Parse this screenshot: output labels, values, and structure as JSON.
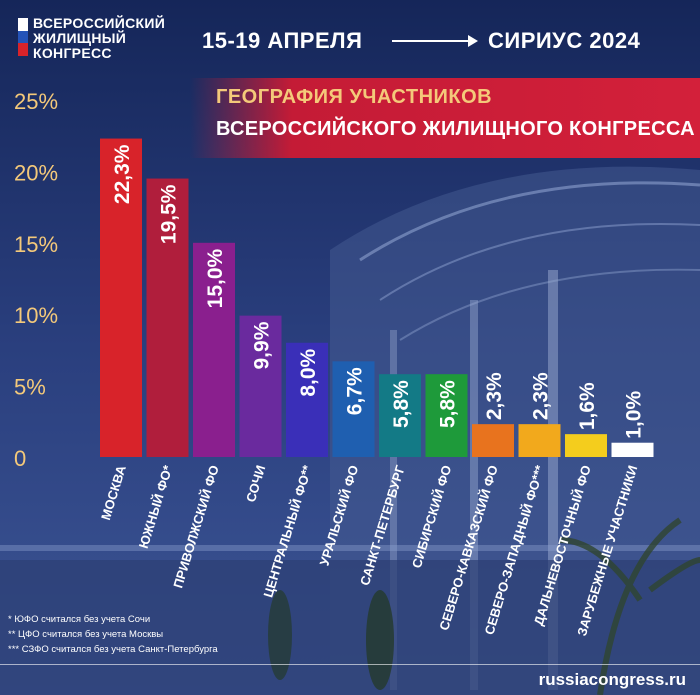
{
  "logo": {
    "lines": [
      "ВСЕРОССИЙСКИЙ",
      "ЖИЛИЩНЫЙ",
      "КОНГРЕСС"
    ],
    "flag_colors": [
      "#ffffff",
      "#2453b8",
      "#d8232a"
    ]
  },
  "header": {
    "dates": "15-19 АПРЕЛЯ",
    "place": "СИРИУС 2024"
  },
  "banner": {
    "line1": "ГЕОГРАФИЯ УЧАСТНИКОВ",
    "line2": "ВСЕРОССИЙСКОГО ЖИЛИЩНОГО КОНГРЕССА"
  },
  "chart_data": {
    "type": "bar",
    "title": "",
    "xlabel": "",
    "ylabel": "",
    "ylim": [
      0,
      25
    ],
    "yticks": [
      "0",
      "5%",
      "10%",
      "15%",
      "20%",
      "25%"
    ],
    "ytick_values": [
      0,
      5,
      10,
      15,
      20,
      25
    ],
    "grid": false,
    "categories": [
      "МОСКВА",
      "ЮЖНЫЙ ФО*",
      "ПРИВОЛЖСКИЙ ФО",
      "СОЧИ",
      "ЦЕНТРАЛЬНЫЙ ФО**",
      "УРАЛЬСКИЙ ФО",
      "САНКТ-ПЕТЕРБУРГ",
      "СИБИРСКИЙ ФО",
      "СЕВЕРО-КАВКАЗСКИЙ ФО",
      "СЕВЕРО-ЗАПАДНЫЙ ФО***",
      "ДАЛЬНЕВОСТОЧНЫЙ ФО",
      "ЗАРУБЕЖНЫЕ УЧАСТНИКИ"
    ],
    "values": [
      22.3,
      19.5,
      15.0,
      9.9,
      8.0,
      6.7,
      5.8,
      5.8,
      2.3,
      2.3,
      1.6,
      1.0
    ],
    "labels": [
      "22,3%",
      "19,5%",
      "15,0%",
      "9,9%",
      "8,0%",
      "6,7%",
      "5,8%",
      "5,8%",
      "2,3%",
      "2,3%",
      "1,6%",
      "1,0%"
    ],
    "colors": [
      "#d8232a",
      "#b01e3c",
      "#8a1f8e",
      "#6a2a9e",
      "#3a2fb8",
      "#1f5fb0",
      "#137a86",
      "#1e9a3a",
      "#e8731e",
      "#f2a91c",
      "#f4cd1d",
      "#ffffff"
    ]
  },
  "footnotes": [
    "*  ЮФО считался без учета Сочи",
    "** ЦФО считался без учета Москвы",
    "*** СЗФО считался без учета Санкт-Петербурга"
  ],
  "url": "russiacongress.ru"
}
